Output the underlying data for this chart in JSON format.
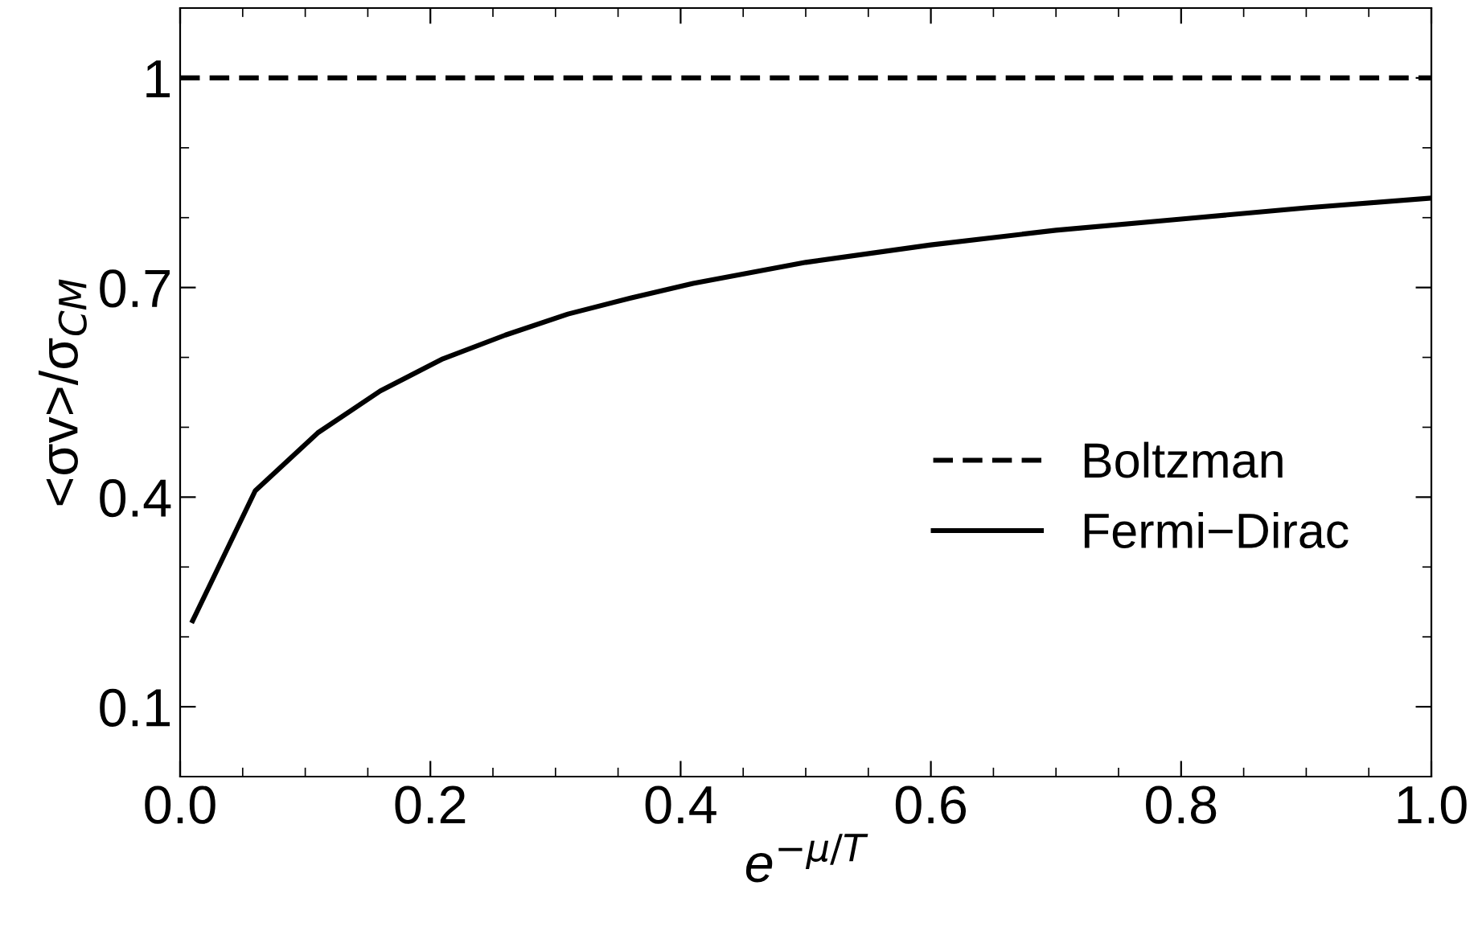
{
  "chart_data": {
    "type": "line",
    "xlabel": "e$^{−μ/T}$",
    "ylabel": "<σv>/σ$_{CM}$",
    "xlim": [
      0,
      1.0
    ],
    "ylim": [
      0,
      1.1
    ],
    "xticks": [
      {
        "value": 0,
        "label": "0.0"
      },
      0.2,
      0.4,
      0.6,
      0.8,
      {
        "value": 1.0,
        "label": "1.0"
      }
    ],
    "yticks": [
      0.1,
      0.4,
      0.7,
      1
    ],
    "grid": false,
    "legend": "right",
    "marker": "none",
    "series": [
      {
        "name": "Boltzman",
        "color": "#000000",
        "line_style": "dashed",
        "x": [
          0,
          1.0
        ],
        "values": [
          1,
          1
        ]
      },
      {
        "name": "Fermi−Dirac",
        "color": "#000000",
        "line_style": "solid",
        "x": [
          0.01,
          0.06,
          0.11,
          0.16,
          0.21,
          0.26,
          0.31,
          0.36,
          0.41,
          0.5,
          0.6,
          0.7,
          0.8,
          0.9,
          1.0
        ],
        "values": [
          0.223,
          0.409,
          0.492,
          0.552,
          0.598,
          0.632,
          0.662,
          0.685,
          0.706,
          0.736,
          0.761,
          0.782,
          0.798,
          0.814,
          0.828
        ]
      }
    ]
  }
}
